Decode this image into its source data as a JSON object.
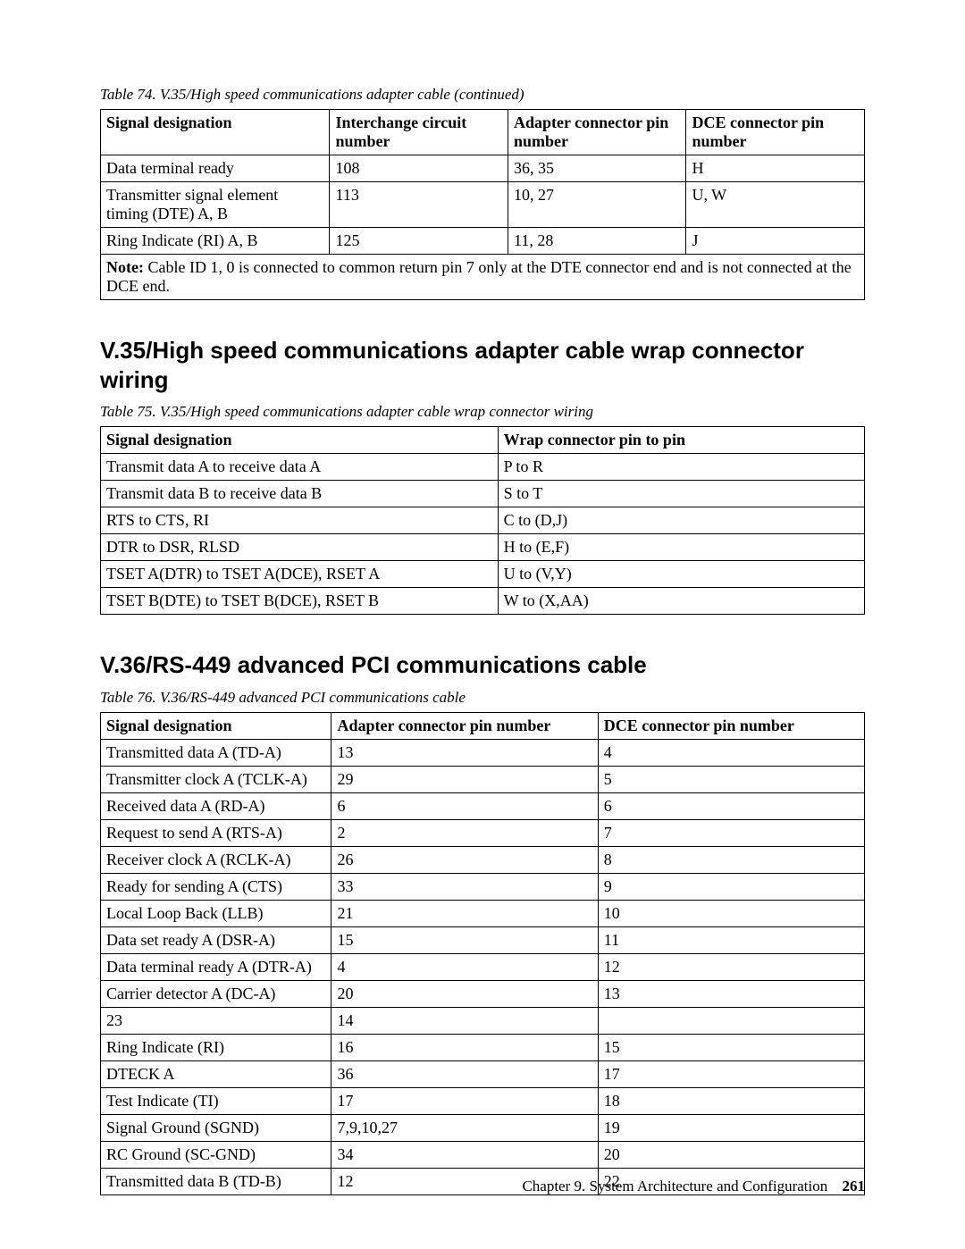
{
  "table74": {
    "caption": "Table 74. V.35/High speed communications adapter cable  (continued)",
    "headers": [
      "Signal designation",
      "Interchange circuit number",
      "Adapter connector pin number",
      "DCE connector pin number"
    ],
    "rows": [
      [
        "Data terminal ready",
        "108",
        "36, 35",
        "H"
      ],
      [
        "Transmitter signal element timing (DTE) A, B",
        "113",
        "10, 27",
        "U, W"
      ],
      [
        "Ring Indicate (RI) A, B",
        "125",
        "11, 28",
        "J"
      ]
    ],
    "note_label": "Note:",
    "note_text": " Cable ID 1, 0 is connected to common return pin 7 only at the DTE connector end and is not connected at the DCE end."
  },
  "section75_heading": "V.35/High speed communications adapter cable wrap connector wiring",
  "table75": {
    "caption": "Table 75. V.35/High speed communications adapter cable wrap connector wiring",
    "headers": [
      "Signal designation",
      "Wrap connector pin to pin"
    ],
    "rows": [
      [
        "Transmit data A to receive data A",
        "P to R"
      ],
      [
        "Transmit data B to receive data B",
        "S to T"
      ],
      [
        "RTS to CTS, RI",
        "C to (D,J)"
      ],
      [
        "DTR to DSR, RLSD",
        "H to (E,F)"
      ],
      [
        "TSET A(DTR) to TSET A(DCE), RSET A",
        "U to (V,Y)"
      ],
      [
        "TSET B(DTE) to TSET B(DCE), RSET B",
        "W to (X,AA)"
      ]
    ]
  },
  "section76_heading": "V.36/RS-449 advanced PCI communications cable",
  "table76": {
    "caption": "Table 76. V.36/RS-449 advanced PCI communications cable",
    "headers": [
      "Signal designation",
      "Adapter connector pin number",
      "DCE connector pin number"
    ],
    "rows": [
      [
        "Transmitted data A (TD-A)",
        "13",
        "4"
      ],
      [
        "Transmitter clock A (TCLK-A)",
        "29",
        "5"
      ],
      [
        "Received data A (RD-A)",
        "6",
        "6"
      ],
      [
        "Request to send A (RTS-A)",
        "2",
        "7"
      ],
      [
        "Receiver clock A (RCLK-A)",
        "26",
        "8"
      ],
      [
        "Ready for sending A (CTS)",
        "33",
        "9"
      ],
      [
        "Local Loop Back (LLB)",
        "21",
        "10"
      ],
      [
        "Data set ready A (DSR-A)",
        "15",
        "11"
      ],
      [
        "Data terminal ready A (DTR-A)",
        "4",
        "12"
      ],
      [
        "Carrier detector A (DC-A)",
        "20",
        "13"
      ],
      [
        "23",
        "14",
        ""
      ],
      [
        "Ring Indicate (RI)",
        "16",
        "15"
      ],
      [
        "DTECK A",
        "36",
        "17"
      ],
      [
        "Test Indicate (TI)",
        "17",
        "18"
      ],
      [
        "Signal Ground (SGND)",
        "7,9,10,27",
        "19"
      ],
      [
        "RC Ground (SC-GND)",
        "34",
        "20"
      ],
      [
        "Transmitted data B (TD-B)",
        "12",
        "22"
      ]
    ]
  },
  "footer": {
    "chapter": "Chapter 9. System Architecture and Configuration",
    "page": "261"
  }
}
